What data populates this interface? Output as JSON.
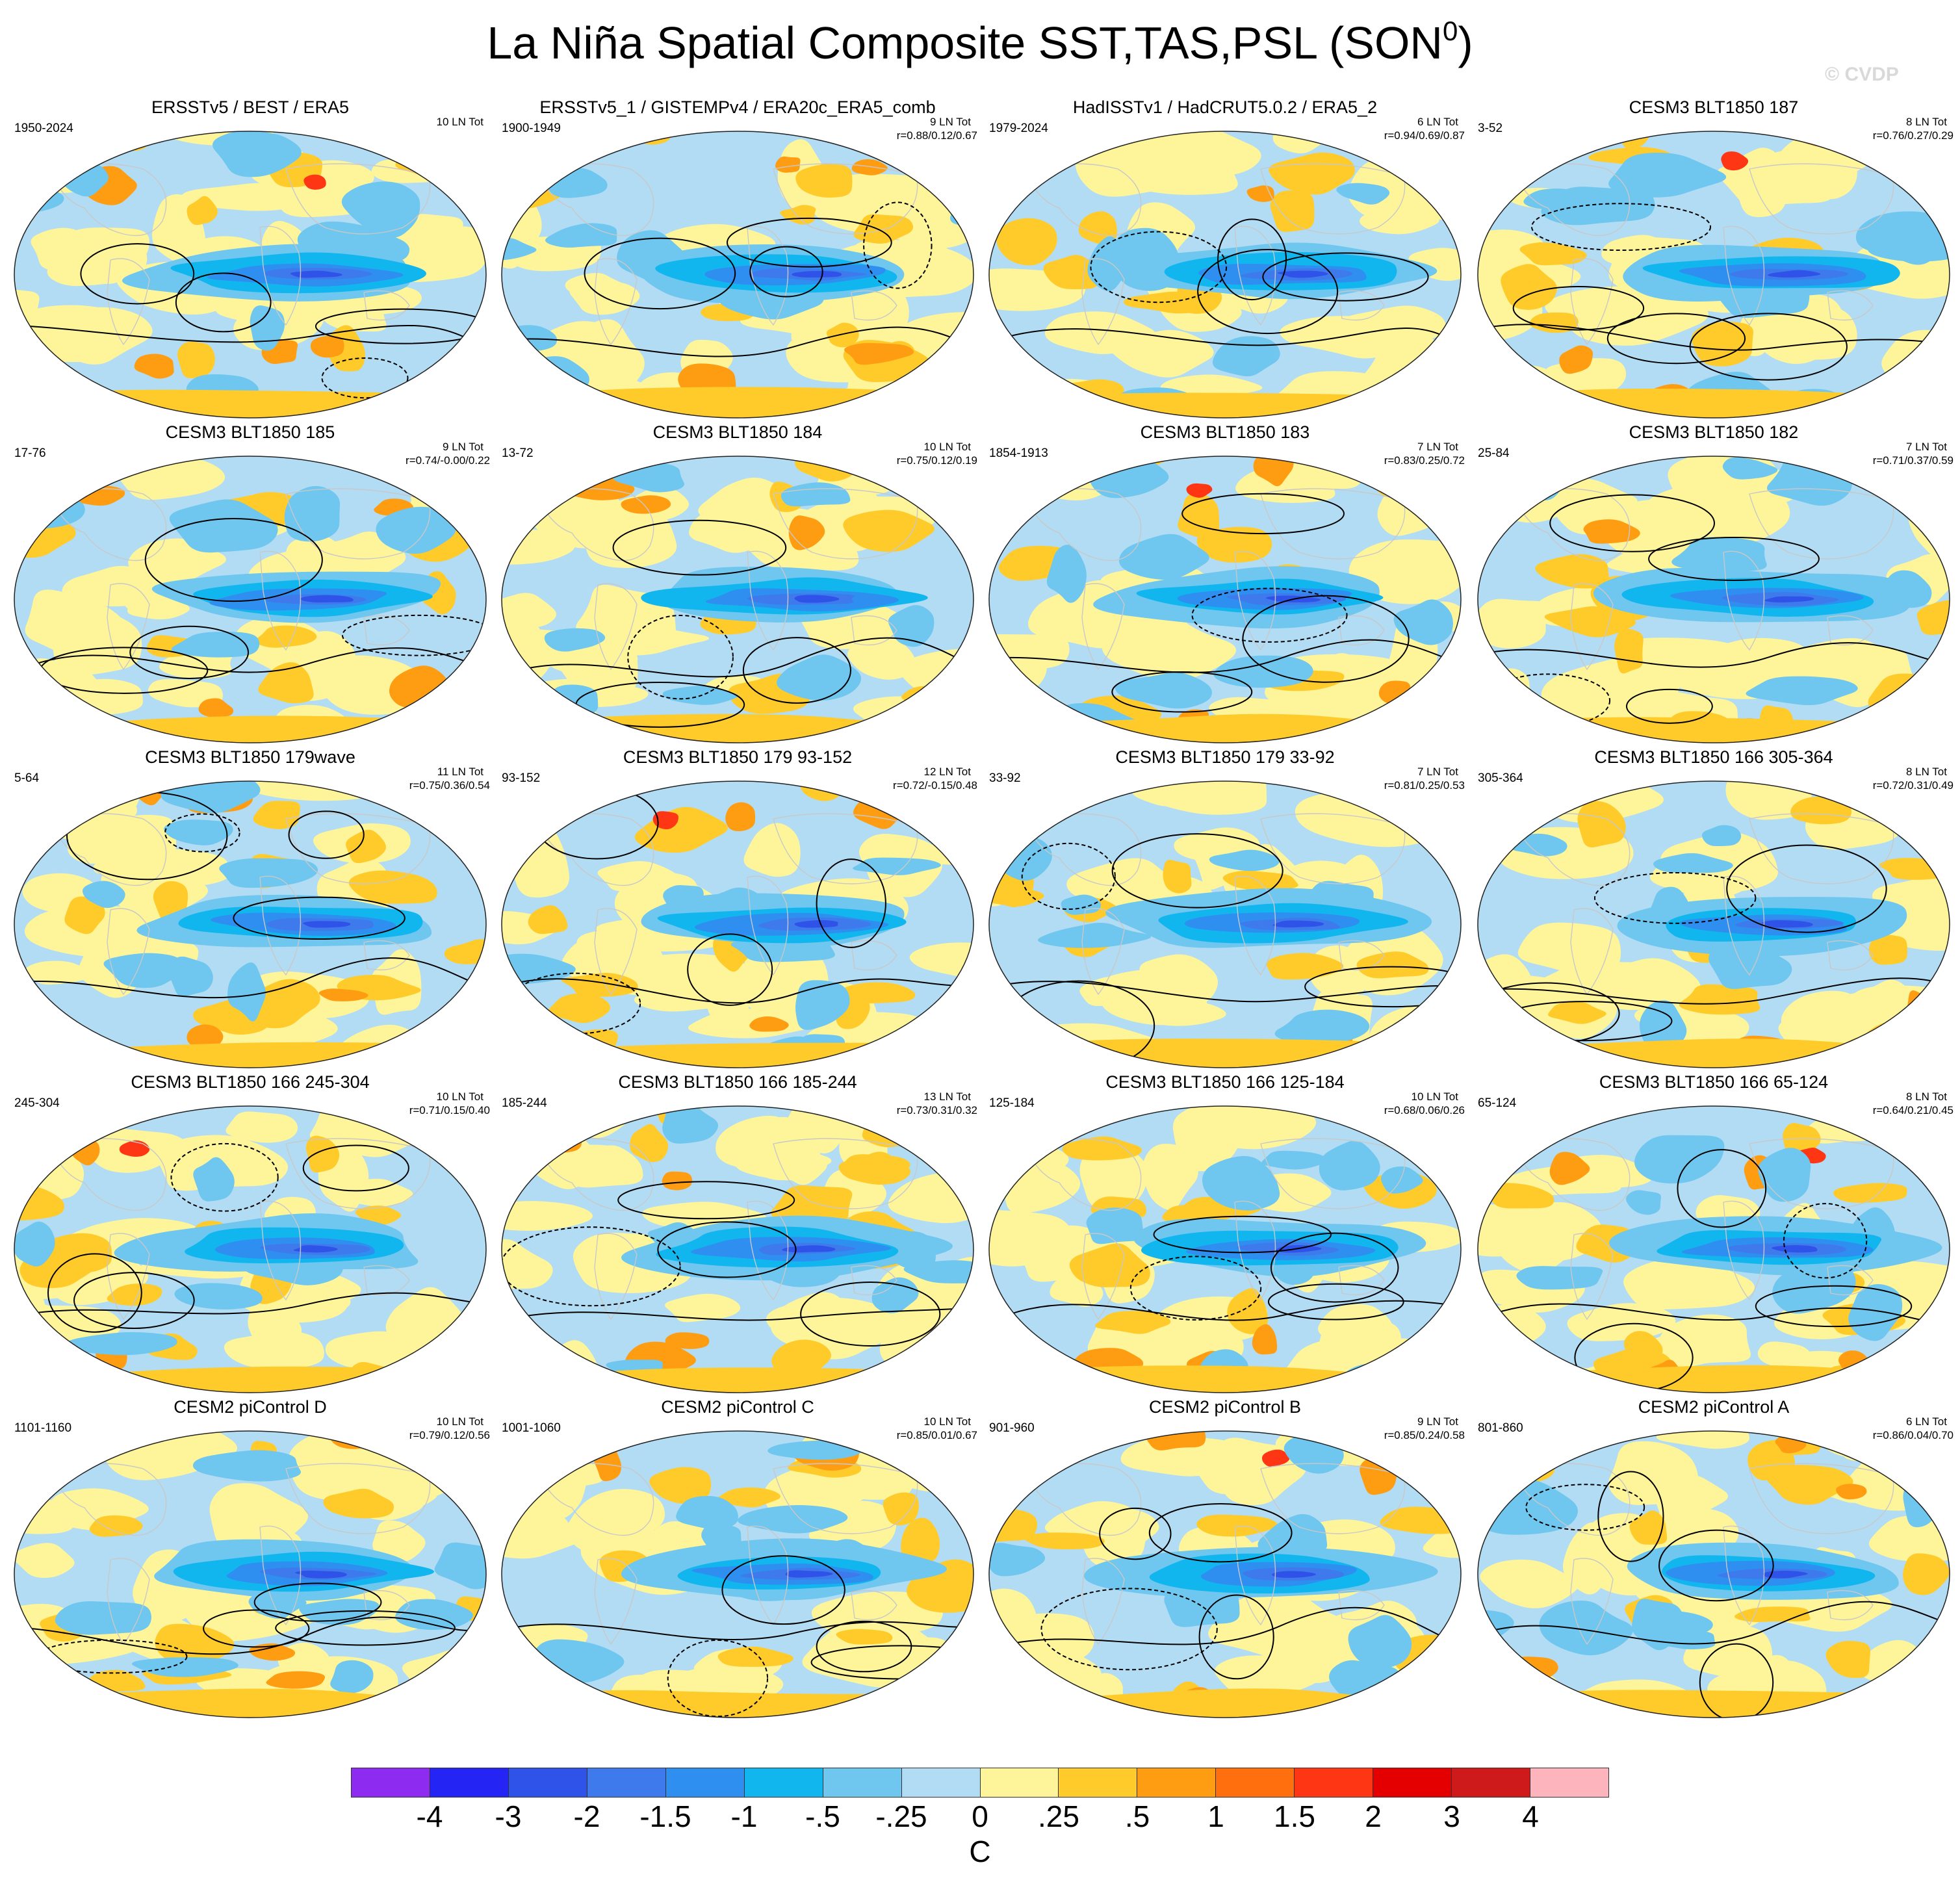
{
  "title": "La Niña Spatial Composite SST,TAS,PSL (SON",
  "title_sup": "0",
  "title_close": ")",
  "watermark": "© CVDP",
  "colors": {
    "levels": [
      "#8d2cf0",
      "#2424f5",
      "#2f52e8",
      "#3f7aec",
      "#2e8ff0",
      "#12b6ef",
      "#6fc6ee",
      "#b2dcf3",
      "#fef59a",
      "#ffcb2b",
      "#ff9d12",
      "#ff6f0d",
      "#fe3614",
      "#e40000",
      "#cf1a1c",
      "#fdb4bc"
    ],
    "land_outline": "#c8c8c8",
    "contour": "#000000"
  },
  "colorbar": {
    "ticks": [
      "-4",
      "-3",
      "-2",
      "-1.5",
      "-1",
      "-.5",
      "-.25",
      "0",
      ".25",
      ".5",
      "1",
      "1.5",
      "2",
      "3",
      "4"
    ],
    "unit": "C"
  },
  "panels": [
    {
      "title": "ERSSTv5 / BEST / ERA5",
      "range": "1950-2024",
      "count": "10 LN Tot",
      "corr": "",
      "variant": 0
    },
    {
      "title": "ERSSTv5_1 / GISTEMPv4 / ERA20c_ERA5_comb",
      "range": "1900-1949",
      "count": "9 LN Tot",
      "corr": "r=0.88/0.12/0.67",
      "variant": 1
    },
    {
      "title": "HadISSTv1 / HadCRUT5.0.2 / ERA5_2",
      "range": "1979-2024",
      "count": "6 LN Tot",
      "corr": "r=0.94/0.69/0.87",
      "variant": 2
    },
    {
      "title": "CESM3 BLT1850 187",
      "range": "3-52",
      "count": "8 LN Tot",
      "corr": "r=0.76/0.27/0.29",
      "variant": 3
    },
    {
      "title": "CESM3 BLT1850 185",
      "range": "17-76",
      "count": "9 LN Tot",
      "corr": "r=0.74/-0.00/0.22",
      "variant": 4
    },
    {
      "title": "CESM3 BLT1850 184",
      "range": "13-72",
      "count": "10 LN Tot",
      "corr": "r=0.75/0.12/0.19",
      "variant": 5
    },
    {
      "title": "CESM3 BLT1850 183",
      "range": "1854-1913",
      "count": "7 LN Tot",
      "corr": "r=0.83/0.25/0.72",
      "variant": 6
    },
    {
      "title": "CESM3 BLT1850 182",
      "range": "25-84",
      "count": "7 LN Tot",
      "corr": "r=0.71/0.37/0.59",
      "variant": 7
    },
    {
      "title": "CESM3 BLT1850 179wave",
      "range": "5-64",
      "count": "11 LN Tot",
      "corr": "r=0.75/0.36/0.54",
      "variant": 8
    },
    {
      "title": "CESM3 BLT1850 179 93-152",
      "range": "93-152",
      "count": "12 LN Tot",
      "corr": "r=0.72/-0.15/0.48",
      "variant": 9
    },
    {
      "title": "CESM3 BLT1850 179 33-92",
      "range": "33-92",
      "count": "7 LN Tot",
      "corr": "r=0.81/0.25/0.53",
      "variant": 10
    },
    {
      "title": "CESM3 BLT1850 166 305-364",
      "range": "305-364",
      "count": "8 LN Tot",
      "corr": "r=0.72/0.31/0.49",
      "variant": 11
    },
    {
      "title": "CESM3 BLT1850 166 245-304",
      "range": "245-304",
      "count": "10 LN Tot",
      "corr": "r=0.71/0.15/0.40",
      "variant": 12
    },
    {
      "title": "CESM3 BLT1850 166 185-244",
      "range": "185-244",
      "count": "13 LN Tot",
      "corr": "r=0.73/0.31/0.32",
      "variant": 13
    },
    {
      "title": "CESM3 BLT1850 166 125-184",
      "range": "125-184",
      "count": "10 LN Tot",
      "corr": "r=0.68/0.06/0.26",
      "variant": 14
    },
    {
      "title": "CESM3 BLT1850 166 65-124",
      "range": "65-124",
      "count": "8 LN Tot",
      "corr": "r=0.64/0.21/0.45",
      "variant": 15
    },
    {
      "title": "CESM2 piControl D",
      "range": "1101-1160",
      "count": "10 LN Tot",
      "corr": "r=0.79/0.12/0.56",
      "variant": 16
    },
    {
      "title": "CESM2 piControl C",
      "range": "1001-1060",
      "count": "10 LN Tot",
      "corr": "r=0.85/0.01/0.67",
      "variant": 17
    },
    {
      "title": "CESM2 piControl B",
      "range": "901-960",
      "count": "9 LN Tot",
      "corr": "r=0.85/0.24/0.58",
      "variant": 18
    },
    {
      "title": "CESM2 piControl A",
      "range": "801-860",
      "count": "6 LN Tot",
      "corr": "r=0.86/0.04/0.70",
      "variant": 19
    }
  ]
}
